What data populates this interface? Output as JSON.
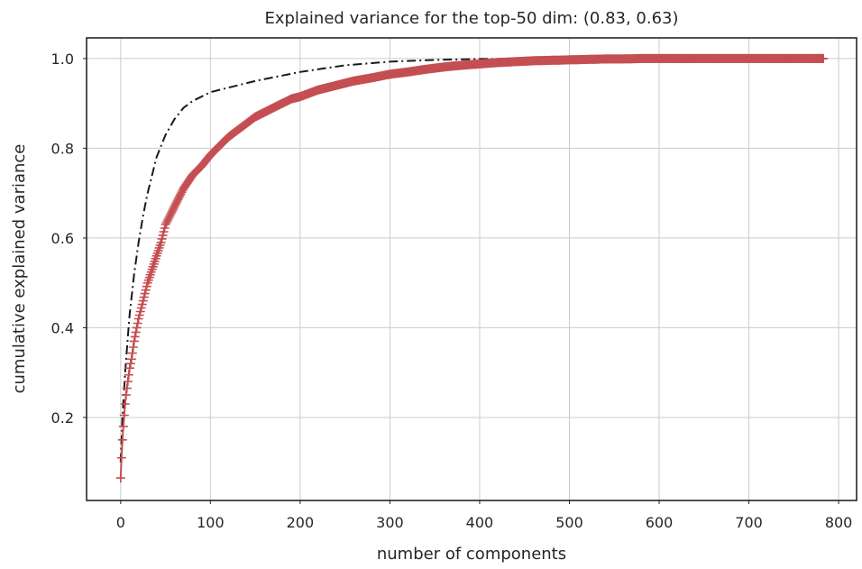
{
  "chart_data": {
    "type": "line",
    "title": "Explained variance for the top-50 dim: (0.83, 0.63)",
    "xlabel": "number of components",
    "ylabel": "cumulative explained variance",
    "xlim": [
      -38,
      820
    ],
    "ylim": [
      0.015,
      1.046
    ],
    "xticks": [
      0,
      100,
      200,
      300,
      400,
      500,
      600,
      700,
      800
    ],
    "xtick_labels": [
      "0",
      "100",
      "200",
      "300",
      "400",
      "500",
      "600",
      "700",
      "800"
    ],
    "yticks": [
      0.2,
      0.4,
      0.6,
      0.8,
      1.0
    ],
    "ytick_labels": [
      "0.2",
      "0.4",
      "0.6",
      "0.8",
      "1.0"
    ],
    "grid": true,
    "series": [
      {
        "style": "dash-dot",
        "color": "#1a1a1a",
        "x": [
          0,
          2,
          5,
          8,
          10,
          15,
          20,
          25,
          30,
          40,
          50,
          60,
          70,
          80,
          100,
          120,
          150,
          200,
          250,
          300,
          350,
          400,
          500,
          600,
          700,
          783
        ],
        "y": [
          0.1,
          0.2,
          0.3,
          0.38,
          0.43,
          0.52,
          0.59,
          0.65,
          0.7,
          0.78,
          0.83,
          0.865,
          0.89,
          0.905,
          0.925,
          0.935,
          0.95,
          0.97,
          0.985,
          0.993,
          0.997,
          0.999,
          1.0,
          1.0,
          1.0,
          1.0
        ]
      },
      {
        "style": "plus-markers",
        "color": "#c44e52",
        "x": [
          0,
          1,
          2,
          3,
          4,
          5,
          6,
          8,
          10,
          12,
          15,
          18,
          20,
          25,
          30,
          35,
          40,
          45,
          50,
          60,
          70,
          80,
          90,
          100,
          110,
          120,
          130,
          140,
          150,
          160,
          170,
          180,
          190,
          200,
          220,
          240,
          260,
          280,
          300,
          320,
          340,
          360,
          380,
          400,
          420,
          440,
          460,
          480,
          500,
          520,
          540,
          560,
          580,
          600,
          620,
          640,
          660,
          680,
          700,
          720,
          740,
          760,
          783
        ],
        "y": [
          0.065,
          0.11,
          0.15,
          0.18,
          0.205,
          0.23,
          0.25,
          0.28,
          0.31,
          0.33,
          0.37,
          0.4,
          0.42,
          0.46,
          0.5,
          0.53,
          0.56,
          0.59,
          0.63,
          0.67,
          0.71,
          0.74,
          0.76,
          0.785,
          0.805,
          0.825,
          0.84,
          0.855,
          0.87,
          0.88,
          0.89,
          0.9,
          0.91,
          0.915,
          0.93,
          0.94,
          0.95,
          0.957,
          0.965,
          0.97,
          0.976,
          0.981,
          0.985,
          0.988,
          0.991,
          0.993,
          0.995,
          0.996,
          0.997,
          0.998,
          0.999,
          0.999,
          1.0,
          1.0,
          1.0,
          1.0,
          1.0,
          1.0,
          1.0,
          1.0,
          1.0,
          1.0,
          1.0
        ]
      }
    ]
  }
}
